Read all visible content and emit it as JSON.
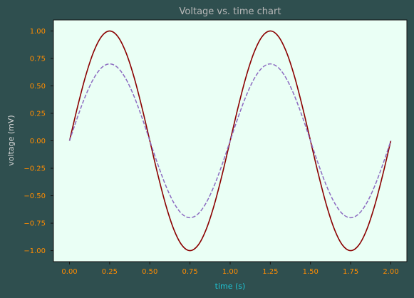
{
  "chart_data": {
    "type": "line",
    "title": "Voltage vs. time chart",
    "xlabel": "time (s)",
    "ylabel": "voltage (mV)",
    "xlim": [
      -0.1,
      2.1
    ],
    "ylim": [
      -1.1,
      1.1
    ],
    "x_ticks": [
      0.0,
      0.25,
      0.5,
      0.75,
      1.0,
      1.25,
      1.5,
      1.75,
      2.0
    ],
    "x_tick_labels": [
      "0.00",
      "0.25",
      "0.50",
      "0.75",
      "1.00",
      "1.25",
      "1.50",
      "1.75",
      "2.00"
    ],
    "y_ticks": [
      1.0,
      0.75,
      0.5,
      0.25,
      0.0,
      -0.25,
      -0.5,
      -0.75,
      -1.0
    ],
    "y_tick_labels": [
      "1.00",
      "0.75",
      "0.50",
      "0.25",
      "0.00",
      "−0.25",
      "−0.50",
      "−0.75",
      "−1.00"
    ],
    "grid": false,
    "x": [
      0.0,
      0.05,
      0.1,
      0.15,
      0.2,
      0.25,
      0.3,
      0.35,
      0.4,
      0.45,
      0.5,
      0.55,
      0.6,
      0.65,
      0.7,
      0.75,
      0.8,
      0.85,
      0.9,
      0.95,
      1.0,
      1.05,
      1.1,
      1.15,
      1.2,
      1.25,
      1.3,
      1.35,
      1.4,
      1.45,
      1.5,
      1.55,
      1.6,
      1.65,
      1.7,
      1.75,
      1.8,
      1.85,
      1.9,
      1.95,
      2.0
    ],
    "series": [
      {
        "style": "solid",
        "color": "#8b0000",
        "values": [
          0.0,
          0.309,
          0.588,
          0.809,
          0.951,
          1.0,
          0.951,
          0.809,
          0.588,
          0.309,
          0.0,
          -0.309,
          -0.588,
          -0.809,
          -0.951,
          -1.0,
          -0.951,
          -0.809,
          -0.588,
          -0.309,
          0.0,
          0.309,
          0.588,
          0.809,
          0.951,
          1.0,
          0.951,
          0.809,
          0.588,
          0.309,
          0.0,
          -0.309,
          -0.588,
          -0.809,
          -0.951,
          -1.0,
          -0.951,
          -0.809,
          -0.588,
          -0.309,
          0.0
        ]
      },
      {
        "style": "dashed",
        "color": "#8c6bc1",
        "values": [
          0.0,
          0.216,
          0.411,
          0.566,
          0.666,
          0.7,
          0.666,
          0.566,
          0.411,
          0.216,
          0.0,
          -0.216,
          -0.411,
          -0.566,
          -0.666,
          -0.7,
          -0.666,
          -0.566,
          -0.411,
          -0.216,
          0.0,
          0.216,
          0.411,
          0.566,
          0.666,
          0.7,
          0.666,
          0.566,
          0.411,
          0.216,
          0.0,
          -0.216,
          -0.411,
          -0.566,
          -0.666,
          -0.7,
          -0.666,
          -0.566,
          -0.411,
          -0.216,
          0.0
        ]
      }
    ]
  },
  "colors": {
    "figure_background": "#2f4f4f",
    "plot_background": "#eafff5",
    "tick_labels": "#ff8c00",
    "title": "#b9b9b9",
    "xlabel": "#1fc3d3",
    "ylabel": "#d8d8d8"
  }
}
